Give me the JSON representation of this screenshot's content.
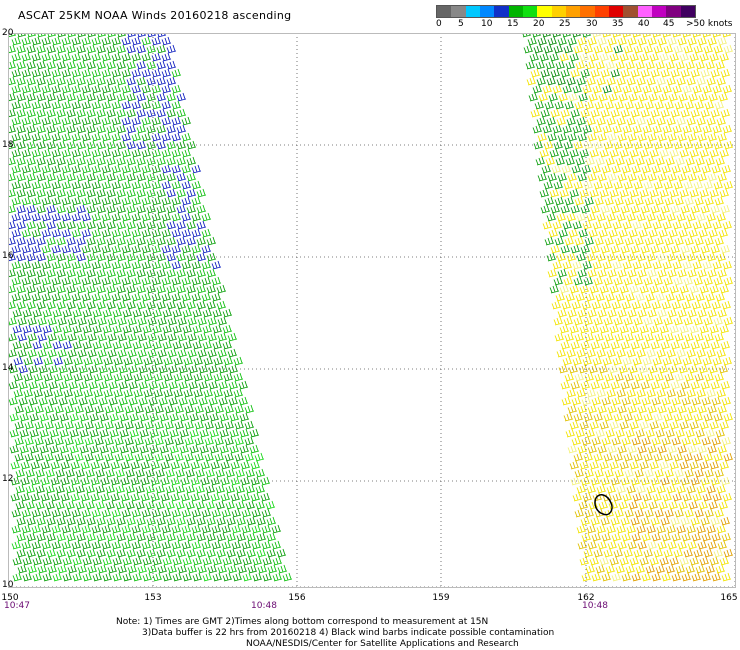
{
  "title": "ASCAT 25KM NOAA Winds 20160218 ascending",
  "legend": {
    "labels": [
      "0",
      "5",
      "10",
      "15",
      "20",
      "25",
      "30",
      "35",
      "40",
      "45",
      ">50 knots"
    ],
    "colors": [
      "#666666",
      "#888888",
      "#00c8ff",
      "#0088ff",
      "#1030c8",
      "#00b400",
      "#10e010",
      "#ffff00",
      "#ffd000",
      "#ffa000",
      "#ff7000",
      "#ff4000",
      "#e00000",
      "#a05030",
      "#ff60ff",
      "#c000c0",
      "#800080",
      "#400060"
    ]
  },
  "map": {
    "lat_labels": [
      "20",
      "18",
      "16",
      "14",
      "12",
      "10"
    ],
    "lon_labels": [
      "150",
      "153",
      "156",
      "159",
      "162",
      "165"
    ],
    "time_labels": [
      "10:47",
      "10:48",
      "10:48"
    ]
  },
  "notes": {
    "line1": "Note: 1) Times are GMT 2)Times along bottom correspond to measurement at 15N",
    "line2": "3)Data buffer is 22 hrs from 20160218 4) Black wind barbs indicate possible contamination",
    "line3": "NOAA/NESDIS/Center for Satellite Applications and Research"
  }
}
